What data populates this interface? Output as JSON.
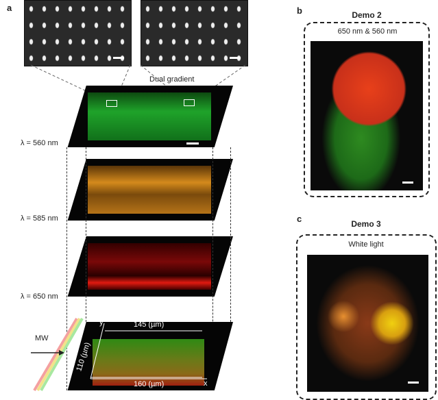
{
  "panel_a": {
    "label": "a",
    "inset_caption": "Dual gradient",
    "layers": [
      {
        "wavelength": "λ = 560 nm",
        "color": "#1fa32a"
      },
      {
        "wavelength": "λ = 585 nm",
        "color": "#d48a1c"
      },
      {
        "wavelength": "λ = 650 nm",
        "color": "#c9140f"
      }
    ],
    "combined": {
      "input_label": "MW",
      "axis_x": "x",
      "axis_y": "y",
      "width_top": "145 (µm)",
      "width_bottom": "160 (µm)",
      "height": "110 (µm)"
    }
  },
  "panel_b": {
    "label": "b",
    "title": "Demo 2",
    "subtitle": "650 nm & 560 nm"
  },
  "panel_c": {
    "label": "c",
    "title": "Demo 3",
    "subtitle": "White light"
  }
}
